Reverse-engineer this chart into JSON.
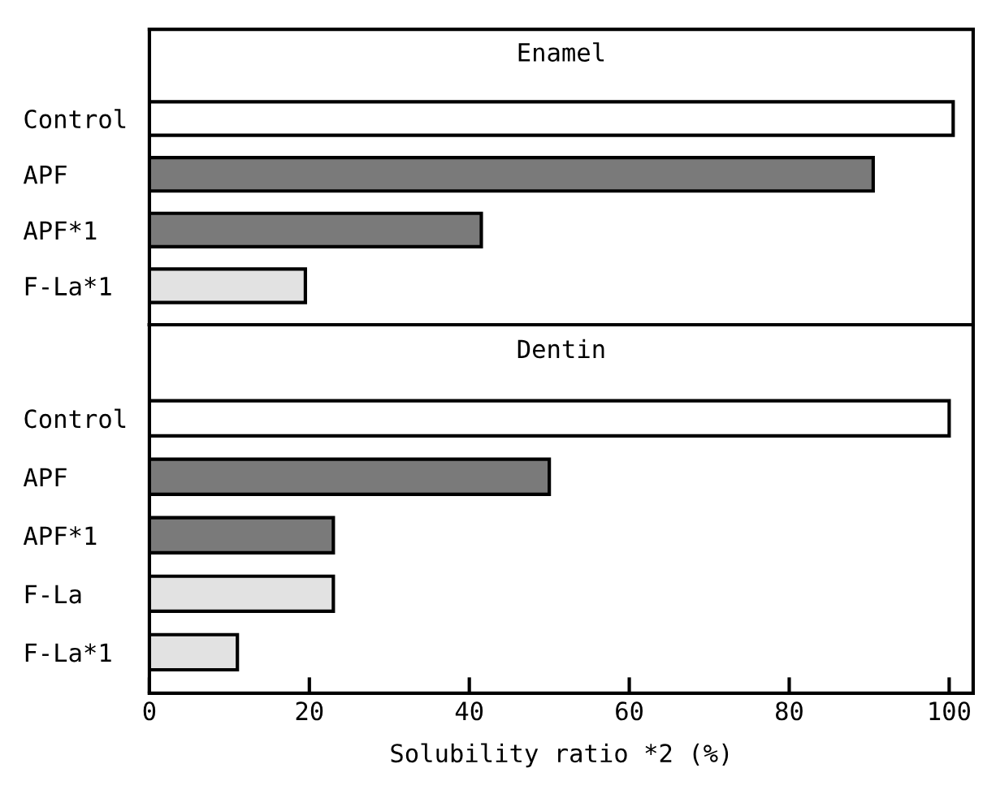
{
  "chart_data": [
    {
      "type": "bar",
      "orientation": "horizontal",
      "title": "Enamel",
      "categories": [
        "Control",
        "APF",
        "APF*1",
        "F-La*1"
      ],
      "values": [
        100.5,
        90.5,
        41.5,
        19.5
      ],
      "colors": [
        "#ffffff",
        "#7a7a7a",
        "#7a7a7a",
        "#e2e2e2"
      ],
      "xlim": [
        0,
        103
      ],
      "tick_labels": "y",
      "grid": false,
      "legend": false
    },
    {
      "type": "bar",
      "orientation": "horizontal",
      "title": "Dentin",
      "categories": [
        "Control",
        "APF",
        "APF*1",
        "F-La",
        "F-La*1"
      ],
      "values": [
        100,
        50,
        23,
        23,
        11
      ],
      "colors": [
        "#ffffff",
        "#7a7a7a",
        "#7a7a7a",
        "#e2e2e2",
        "#e2e2e2"
      ],
      "xlim": [
        0,
        103
      ],
      "xticks": [
        0,
        20,
        40,
        60,
        80,
        100
      ],
      "xlabel": "Solubility ratio *2 (%)",
      "grid": false,
      "legend": false
    }
  ]
}
